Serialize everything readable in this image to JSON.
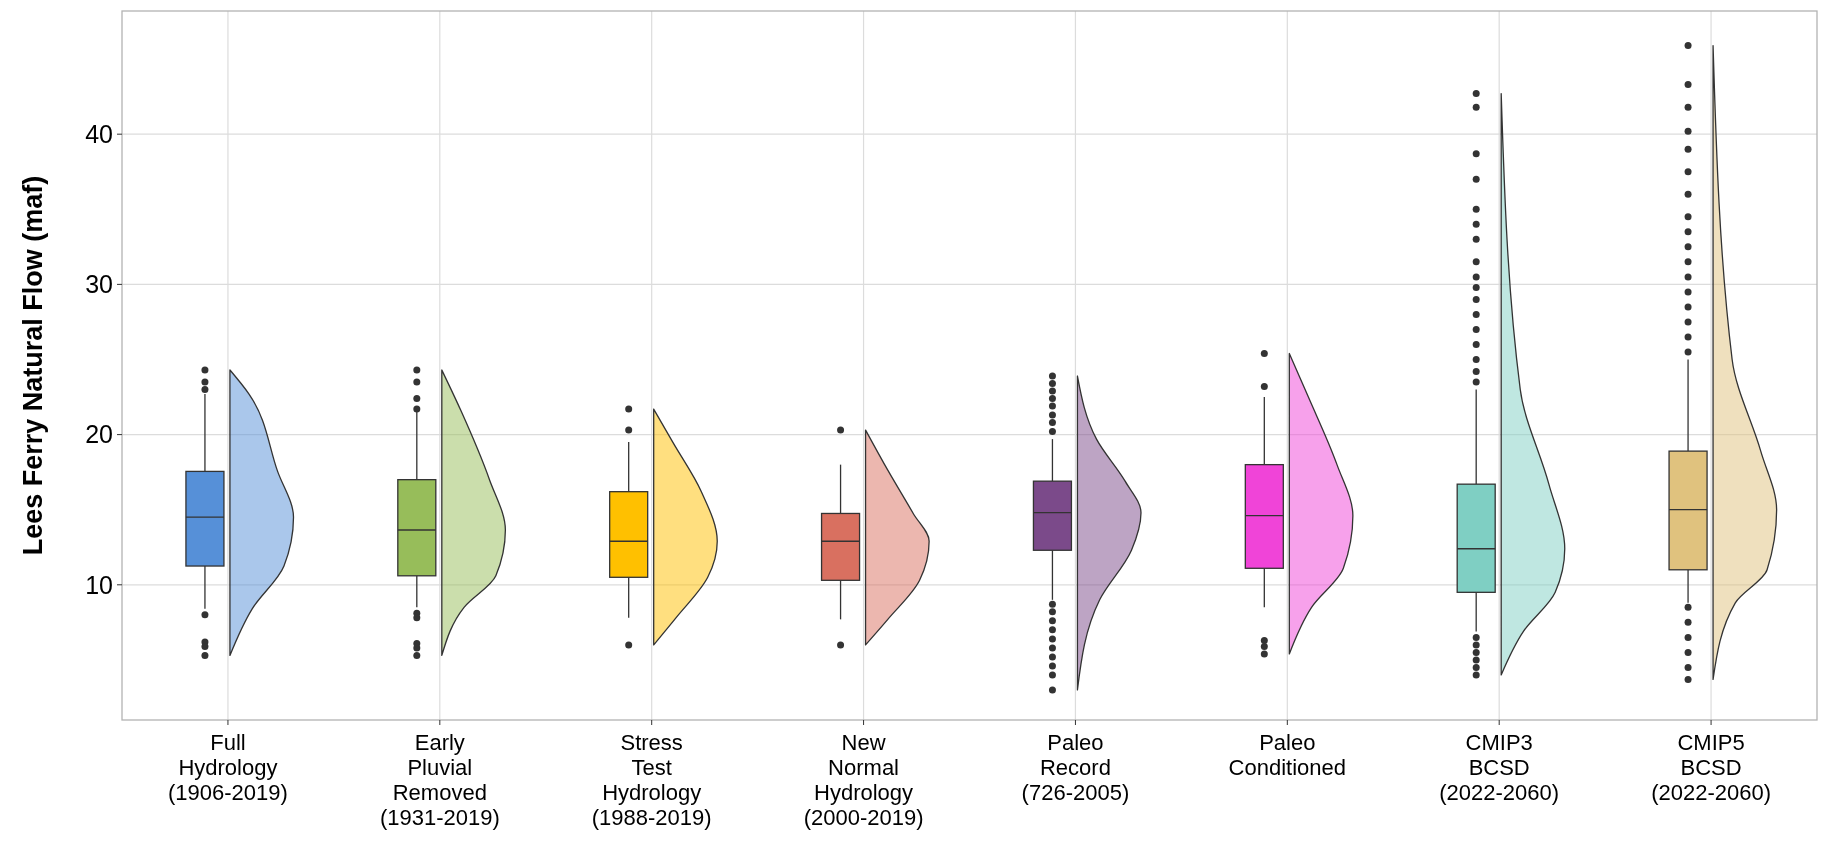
{
  "chart_data": {
    "type": "box",
    "ylabel": "Lees Ferry Natural Flow (maf)",
    "ylim": [
      1,
      48.2
    ],
    "yticks": [
      10,
      20,
      30,
      40
    ],
    "grid": true,
    "categories": [
      "Full Hydrology (1906-2019)",
      "Early Pluvial Removed (1931-2019)",
      "Stress Test Hydrology (1988-2019)",
      "New Normal Hydrology (2000-2019)",
      "Paleo Record (726-2005)",
      "Paleo Conditioned",
      "CMIP3 BCSD (2022-2060)",
      "CMIP5 BCSD (2022-2060)"
    ],
    "series": [
      {
        "colors": [
          "#5690d8",
          "#97bd5a",
          "#ffc000",
          "#d97060",
          "#7b4a8a",
          "#f044d8",
          "#7fcfc3",
          "#e0c27e"
        ],
        "boxes": [
          {
            "low": 8.4,
            "q1": 11.25,
            "median": 14.5,
            "q3": 17.55,
            "high": 22.7,
            "outliers": [
              23.0,
              23.5,
              24.3,
              8.0,
              6.2,
              5.9,
              5.3
            ]
          },
          {
            "low": 8.5,
            "q1": 10.6,
            "median": 13.65,
            "q3": 17.0,
            "high": 21.6,
            "outliers": [
              21.7,
              22.4,
              23.5,
              24.3,
              8.1,
              7.8,
              6.1,
              5.8,
              5.3
            ]
          },
          {
            "low": 7.8,
            "q1": 10.5,
            "median": 12.9,
            "q3": 16.2,
            "high": 19.5,
            "outliers": [
              20.3,
              21.7,
              6.0
            ]
          },
          {
            "low": 7.7,
            "q1": 10.3,
            "median": 12.9,
            "q3": 14.75,
            "high": 18.0,
            "outliers": [
              20.3,
              6.0
            ]
          },
          {
            "low": 9.0,
            "q1": 12.3,
            "median": 14.8,
            "q3": 16.9,
            "high": 19.7,
            "outliers": [
              20.2,
              20.8,
              21.3,
              21.9,
              22.4,
              22.9,
              23.4,
              23.9,
              8.7,
              8.2,
              7.6,
              7.0,
              6.4,
              5.8,
              5.2,
              4.6,
              4.0,
              3.0
            ]
          },
          {
            "low": 8.5,
            "q1": 11.1,
            "median": 14.6,
            "q3": 18.0,
            "high": 22.5,
            "outliers": [
              23.2,
              25.4,
              6.3,
              5.9,
              5.4
            ]
          },
          {
            "low": 6.9,
            "q1": 9.5,
            "median": 12.4,
            "q3": 16.7,
            "high": 23.0,
            "outliers": [
              23.5,
              24.2,
              25,
              26,
              27,
              28,
              29,
              29.8,
              30.5,
              31.5,
              33,
              34,
              35,
              37,
              38.7,
              41.8,
              42.7,
              6.5,
              6.0,
              5.5,
              5.0,
              4.5,
              4.0
            ]
          },
          {
            "low": 8.8,
            "q1": 11.0,
            "median": 15.0,
            "q3": 18.9,
            "high": 25.0,
            "outliers": [
              25.5,
              26.5,
              27.5,
              28.5,
              29.5,
              30.5,
              31.5,
              32.5,
              33.5,
              34.5,
              36,
              37.5,
              39,
              40.2,
              41.8,
              43.3,
              45.9,
              8.5,
              7.5,
              6.5,
              5.5,
              4.5,
              3.7
            ]
          }
        ]
      }
    ]
  }
}
